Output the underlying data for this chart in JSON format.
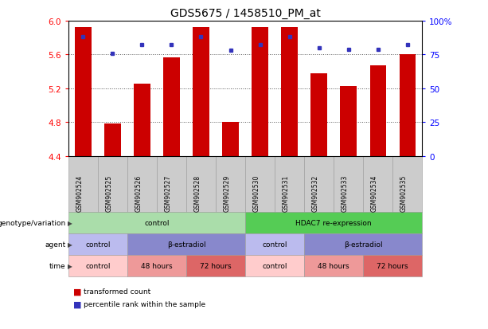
{
  "title": "GDS5675 / 1458510_PM_at",
  "samples": [
    "GSM902524",
    "GSM902525",
    "GSM902526",
    "GSM902527",
    "GSM902528",
    "GSM902529",
    "GSM902530",
    "GSM902531",
    "GSM902532",
    "GSM902533",
    "GSM902534",
    "GSM902535"
  ],
  "bar_values": [
    5.92,
    4.78,
    5.25,
    5.57,
    5.92,
    4.8,
    5.92,
    5.92,
    5.38,
    5.23,
    5.47,
    5.6
  ],
  "dot_values": [
    88,
    76,
    82,
    82,
    88,
    78,
    82,
    88,
    80,
    79,
    79,
    82
  ],
  "bar_bottom": 4.4,
  "ylim_left": [
    4.4,
    6.0
  ],
  "ylim_right": [
    0,
    100
  ],
  "yticks_left": [
    4.4,
    4.8,
    5.2,
    5.6,
    6.0
  ],
  "yticks_right": [
    0,
    25,
    50,
    75,
    100
  ],
  "bar_color": "#cc0000",
  "dot_color": "#3333bb",
  "genotype_row": {
    "label": "genotype/variation",
    "segments": [
      {
        "text": "control",
        "span": 6,
        "color": "#aaddaa"
      },
      {
        "text": "HDAC7 re-expression",
        "span": 6,
        "color": "#55cc55"
      }
    ]
  },
  "agent_row": {
    "label": "agent",
    "segments": [
      {
        "text": "control",
        "span": 2,
        "color": "#bbbbee"
      },
      {
        "text": "β-estradiol",
        "span": 4,
        "color": "#8888cc"
      },
      {
        "text": "control",
        "span": 2,
        "color": "#bbbbee"
      },
      {
        "text": "β-estradiol",
        "span": 4,
        "color": "#8888cc"
      }
    ]
  },
  "time_row": {
    "label": "time",
    "segments": [
      {
        "text": "control",
        "span": 2,
        "color": "#ffcccc"
      },
      {
        "text": "48 hours",
        "span": 2,
        "color": "#ee9999"
      },
      {
        "text": "72 hours",
        "span": 2,
        "color": "#dd6666"
      },
      {
        "text": "control",
        "span": 2,
        "color": "#ffcccc"
      },
      {
        "text": "48 hours",
        "span": 2,
        "color": "#ee9999"
      },
      {
        "text": "72 hours",
        "span": 2,
        "color": "#dd6666"
      }
    ]
  },
  "legend": [
    {
      "color": "#cc0000",
      "label": "transformed count"
    },
    {
      "color": "#3333bb",
      "label": "percentile rank within the sample"
    }
  ],
  "bar_width": 0.55,
  "sample_bg_color": "#cccccc",
  "grid_yticks": [
    4.8,
    5.2,
    5.6
  ]
}
